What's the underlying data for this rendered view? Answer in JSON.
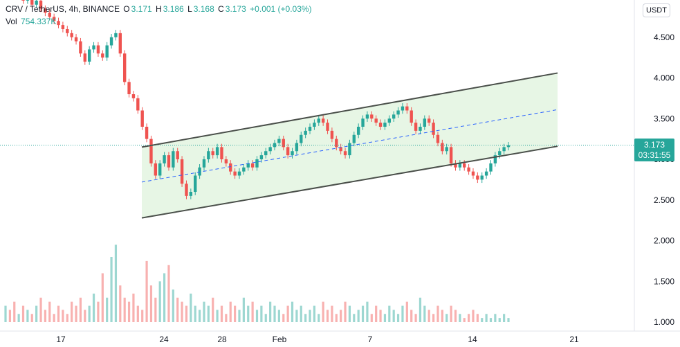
{
  "legend": {
    "symbol": "CRV / TetherUS, 4h, BINANCE",
    "open_k": "O",
    "open_v": "3.171",
    "high_k": "H",
    "high_v": "3.186",
    "low_k": "L",
    "low_v": "3.168",
    "close_k": "C",
    "close_v": "3.173",
    "change": "+0.001 (+0.03%)",
    "vol_label": "Vol",
    "vol_value": "754.337K"
  },
  "currency_button": "USDT",
  "price_tag": {
    "price": "3.173",
    "countdown": "03:31:55"
  },
  "colors": {
    "up": "#26a69a",
    "down": "#ef5350",
    "channel_fill": "#e3f4e1",
    "channel_line": "#4a4f4a",
    "mid_line": "#2962ff"
  },
  "chart_data": {
    "type": "candlestick",
    "title": "CRV / TetherUS, 4h, BINANCE",
    "y_ticks": [
      "4.500",
      "4.000",
      "3.500",
      "3.000",
      "2.500",
      "2.000",
      "1.500",
      "1.000"
    ],
    "x_ticks": [
      "17",
      "24",
      "28",
      "Feb",
      "7",
      "14",
      "21"
    ],
    "last_price": 3.173,
    "price_series_close": [
      5.2,
      5.15,
      5.05,
      5.1,
      4.95,
      5.0,
      4.9,
      4.95,
      4.85,
      4.8,
      4.75,
      4.7,
      4.65,
      4.6,
      4.55,
      4.5,
      4.45,
      4.3,
      4.2,
      4.35,
      4.4,
      4.3,
      4.25,
      4.4,
      4.5,
      4.55,
      4.3,
      3.95,
      3.8,
      3.75,
      3.6,
      3.4,
      3.25,
      2.95,
      2.8,
      2.95,
      3.05,
      2.9,
      3.1,
      3.0,
      2.7,
      2.55,
      2.6,
      2.8,
      2.9,
      3.0,
      3.1,
      3.05,
      3.15,
      3.0,
      2.95,
      2.85,
      2.8,
      2.85,
      2.9,
      2.95,
      2.9,
      3.0,
      3.05,
      3.1,
      3.15,
      3.2,
      3.25,
      3.15,
      3.05,
      3.1,
      3.2,
      3.3,
      3.35,
      3.4,
      3.45,
      3.5,
      3.45,
      3.35,
      3.25,
      3.15,
      3.1,
      3.05,
      3.2,
      3.3,
      3.4,
      3.5,
      3.55,
      3.5,
      3.45,
      3.4,
      3.45,
      3.5,
      3.55,
      3.6,
      3.65,
      3.6,
      3.45,
      3.35,
      3.4,
      3.5,
      3.45,
      3.3,
      3.2,
      3.1,
      3.15,
      2.95,
      2.9,
      2.95,
      2.9,
      2.85,
      2.8,
      2.75,
      2.8,
      2.85,
      2.95,
      3.05,
      3.1,
      3.15,
      3.173
    ],
    "volume_series": [
      1.2,
      1.15,
      1.25,
      1.1,
      1.2,
      1.15,
      1.1,
      1.2,
      1.3,
      1.15,
      1.25,
      1.1,
      1.2,
      1.15,
      1.1,
      1.25,
      1.2,
      1.3,
      1.15,
      1.2,
      1.35,
      1.25,
      1.6,
      1.3,
      1.8,
      1.95,
      1.45,
      1.3,
      1.25,
      1.35,
      1.2,
      1.15,
      1.75,
      1.45,
      1.3,
      1.5,
      1.6,
      1.7,
      1.4,
      1.3,
      1.25,
      1.2,
      1.35,
      1.2,
      1.15,
      1.25,
      1.2,
      1.3,
      1.15,
      1.2,
      1.1,
      1.25,
      1.2,
      1.15,
      1.3,
      1.2,
      1.25,
      1.15,
      1.2,
      1.1,
      1.25,
      1.2,
      1.15,
      1.1,
      1.2,
      1.25,
      1.15,
      1.2,
      1.1,
      1.15,
      1.2,
      1.1,
      1.25,
      1.15,
      1.2,
      1.1,
      1.15,
      1.25,
      1.2,
      1.1,
      1.15,
      1.2,
      1.25,
      1.1,
      1.2,
      1.15,
      1.1,
      1.2,
      1.15,
      1.1,
      1.2,
      1.25,
      1.15,
      1.1,
      1.3,
      1.2,
      1.15,
      1.1,
      1.2,
      1.15,
      1.1,
      1.2,
      1.15,
      1.1,
      1.05,
      1.1,
      1.15,
      1.1,
      1.05,
      1.1,
      1.05,
      1.1,
      1.05,
      1.1,
      1.05
    ],
    "channel": {
      "upper": [
        [
          2.2,
          3.15
        ],
        [
          8.1,
          4.06
        ]
      ],
      "lower": [
        [
          2.2,
          2.28
        ],
        [
          8.1,
          3.16
        ]
      ],
      "mid": [
        [
          2.2,
          2.72
        ],
        [
          8.1,
          3.61
        ]
      ]
    }
  }
}
